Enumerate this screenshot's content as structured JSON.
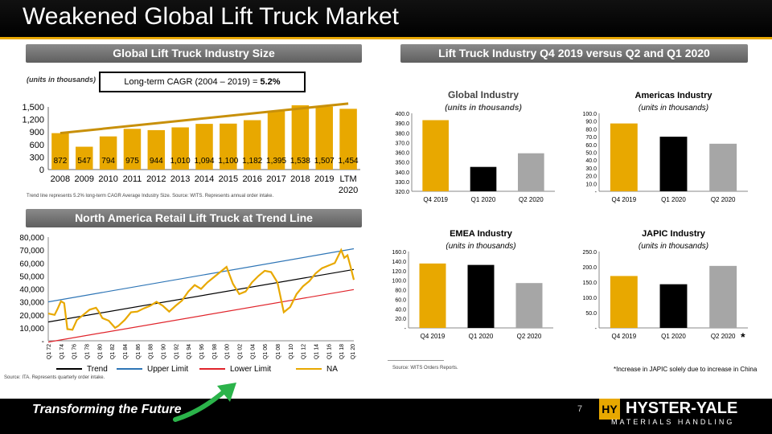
{
  "title": "Weakened Global Lift Truck Market",
  "tagline": "Transforming the Future",
  "page_number": "7",
  "logo": {
    "mark": "HY",
    "name": "HYSTER-YALE",
    "sub": "MATERIALS HANDLING"
  },
  "colors": {
    "gold": "#e8a800",
    "black": "#000000",
    "gray": "#a6a6a6",
    "section_gray": "#7a7a7a",
    "trend_line": "#000000",
    "upper_limit": "#2e75b6",
    "lower_limit": "#e0242b",
    "arrow_green": "#2bb34a"
  },
  "section1": {
    "header": "Global Lift Truck Industry Size",
    "units": "(units in thousands)",
    "cagr_label": "Long-term CAGR (2004 – 2019) = ",
    "cagr_value": "5.2%",
    "footnote": "Trend line represents 5.2% long-term CAGR Average Industry Size. Source: WITS. Represents annual order intake."
  },
  "section2": {
    "header": "Lift Truck Industry Q4 2019 versus Q2 and Q1 2020",
    "footnote": "Source: WITS Orders Reports.",
    "japic_note": "*Increase in JAPIC solely due to increase in China"
  },
  "section3": {
    "header": "North America Retail Lift Truck at Trend Line",
    "footnote": "Source: ITA. Represents quarterly order intake."
  },
  "chart_data": [
    {
      "id": "global_size",
      "type": "bar",
      "categories": [
        "2008",
        "2009",
        "2010",
        "2011",
        "2012",
        "2013",
        "2014",
        "2015",
        "2016",
        "2017",
        "2018",
        "2019",
        "LTM 2020"
      ],
      "values": [
        872,
        547,
        794,
        975,
        944,
        1010,
        1094,
        1100,
        1182,
        1395,
        1538,
        1507,
        1454
      ],
      "value_labels": [
        "872",
        "547",
        "794",
        "975",
        "944",
        "1,010",
        "1,094",
        "1,100",
        "1,182",
        "1,395",
        "1,538",
        "1,507",
        "1,454"
      ],
      "trend": {
        "start": 872,
        "end": 1580
      },
      "ylim": [
        0,
        1500
      ],
      "yticks": [
        "0",
        "300",
        "600",
        "900",
        "1,200",
        "1,500"
      ],
      "ytick_values": [
        0,
        300,
        600,
        900,
        1200,
        1500
      ],
      "colors": {
        "bar": "#e8a800",
        "trend": "#c8900a"
      }
    },
    {
      "id": "global_industry",
      "type": "bar",
      "title": "Global Industry",
      "subtitle": "(units in thousands)",
      "categories": [
        "Q4 2019",
        "Q1 2020",
        "Q2 2020"
      ],
      "values": [
        393,
        345,
        359
      ],
      "ylim": [
        320,
        400
      ],
      "yticks": [
        "320.0",
        "330.0",
        "340.0",
        "350.0",
        "360.0",
        "370.0",
        "380.0",
        "390.0",
        "400.0"
      ],
      "ytick_values": [
        320,
        330,
        340,
        350,
        360,
        370,
        380,
        390,
        400
      ],
      "colors": [
        "#e8a800",
        "#000000",
        "#a6a6a6"
      ]
    },
    {
      "id": "americas",
      "type": "bar",
      "title": "Americas Industry",
      "subtitle": "(units in thousands)",
      "categories": [
        "Q4 2019",
        "Q1 2020",
        "Q2 2020"
      ],
      "values": [
        87,
        70,
        61
      ],
      "ylim": [
        0,
        100
      ],
      "yticks": [
        "-",
        "10.0",
        "20.0",
        "30.0",
        "40.0",
        "50.0",
        "60.0",
        "70.0",
        "80.0",
        "90.0",
        "100.0"
      ],
      "ytick_values": [
        0,
        10,
        20,
        30,
        40,
        50,
        60,
        70,
        80,
        90,
        100
      ],
      "colors": [
        "#e8a800",
        "#000000",
        "#a6a6a6"
      ]
    },
    {
      "id": "emea",
      "type": "bar",
      "title": "EMEA Industry",
      "subtitle": "(units in thousands)",
      "categories": [
        "Q4 2019",
        "Q1 2020",
        "Q2 2020"
      ],
      "values": [
        135,
        132,
        94
      ],
      "ylim": [
        0,
        160
      ],
      "yticks": [
        "-",
        "20.0",
        "40.0",
        "60.0",
        "80.0",
        "100.0",
        "120.0",
        "140.0",
        "160.0"
      ],
      "ytick_values": [
        0,
        20,
        40,
        60,
        80,
        100,
        120,
        140,
        160
      ],
      "colors": [
        "#e8a800",
        "#000000",
        "#a6a6a6"
      ]
    },
    {
      "id": "japic",
      "type": "bar",
      "title": "JAPIC Industry",
      "subtitle": "(units in thousands)",
      "categories": [
        "Q4 2019",
        "Q1 2020",
        "Q2 2020"
      ],
      "category_marks": [
        "",
        "",
        "*"
      ],
      "values": [
        170,
        143,
        203
      ],
      "ylim": [
        0,
        250
      ],
      "yticks": [
        "-",
        "50.0",
        "100.0",
        "150.0",
        "200.0",
        "250.0"
      ],
      "ytick_values": [
        0,
        50,
        100,
        150,
        200,
        250
      ],
      "colors": [
        "#e8a800",
        "#000000",
        "#a6a6a6"
      ]
    },
    {
      "id": "na_retail",
      "type": "line",
      "x_labels": [
        "Q1 72",
        "Q1 74",
        "Q1 76",
        "Q1 78",
        "Q1 80",
        "Q1 82",
        "Q1 84",
        "Q1 86",
        "Q1 88",
        "Q1 90",
        "Q1 92",
        "Q1 94",
        "Q1 96",
        "Q1 98",
        "Q1 00",
        "Q1 02",
        "Q1 04",
        "Q1 06",
        "Q1 08",
        "Q1 10",
        "Q1 12",
        "Q1 14",
        "Q1 16",
        "Q1 18",
        "Q1 20"
      ],
      "ylim": [
        0,
        80000
      ],
      "yticks": [
        "-",
        "10,000",
        "20,000",
        "30,000",
        "40,000",
        "50,000",
        "60,000",
        "70,000",
        "80,000"
      ],
      "ytick_values": [
        0,
        10000,
        20000,
        30000,
        40000,
        50000,
        60000,
        70000,
        80000
      ],
      "series": [
        {
          "name": "Trend",
          "color": "#000000",
          "points": [
            [
              1972,
              14500
            ],
            [
              2020,
              55000
            ]
          ]
        },
        {
          "name": "Upper Limit",
          "color": "#2e75b6",
          "points": [
            [
              1972,
              30000
            ],
            [
              2020,
              71000
            ]
          ]
        },
        {
          "name": "Lower Limit",
          "color": "#e0242b",
          "points": [
            [
              1972,
              -1000
            ],
            [
              2020,
              39500
            ]
          ]
        },
        {
          "name": "NA",
          "color": "#e8a800",
          "points": [
            [
              1972,
              21000
            ],
            [
              1973,
              20000
            ],
            [
              1973.5,
              25000
            ],
            [
              1974,
              30500
            ],
            [
              1974.5,
              29000
            ],
            [
              1975,
              9000
            ],
            [
              1975.8,
              8500
            ],
            [
              1976.5,
              16000
            ],
            [
              1977.5,
              20000
            ],
            [
              1978.5,
              24000
            ],
            [
              1979.5,
              25500
            ],
            [
              1980,
              22000
            ],
            [
              1980.5,
              17500
            ],
            [
              1981.5,
              15500
            ],
            [
              1982.5,
              10000
            ],
            [
              1983,
              11500
            ],
            [
              1984,
              16000
            ],
            [
              1985,
              22000
            ],
            [
              1986,
              22500
            ],
            [
              1987,
              25000
            ],
            [
              1988,
              27000
            ],
            [
              1989,
              30000
            ],
            [
              1990,
              27000
            ],
            [
              1991,
              22500
            ],
            [
              1992,
              27000
            ],
            [
              1993,
              31000
            ],
            [
              1994,
              38000
            ],
            [
              1995,
              43000
            ],
            [
              1996,
              40000
            ],
            [
              1997,
              45000
            ],
            [
              1998,
              49000
            ],
            [
              1999,
              53000
            ],
            [
              2000,
              57000
            ],
            [
              2001,
              44000
            ],
            [
              2002,
              36000
            ],
            [
              2003,
              38000
            ],
            [
              2004,
              45000
            ],
            [
              2005,
              50000
            ],
            [
              2006,
              54000
            ],
            [
              2007,
              53000
            ],
            [
              2008,
              45000
            ],
            [
              2009,
              22000
            ],
            [
              2010,
              26000
            ],
            [
              2011,
              36000
            ],
            [
              2012,
              42000
            ],
            [
              2013,
              46000
            ],
            [
              2014,
              52000
            ],
            [
              2015,
              56000
            ],
            [
              2016,
              58000
            ],
            [
              2017,
              60000
            ],
            [
              2018,
              70000
            ],
            [
              2018.5,
              64000
            ],
            [
              2019,
              66000
            ],
            [
              2019.5,
              57000
            ],
            [
              2020,
              47000
            ]
          ]
        }
      ]
    }
  ]
}
